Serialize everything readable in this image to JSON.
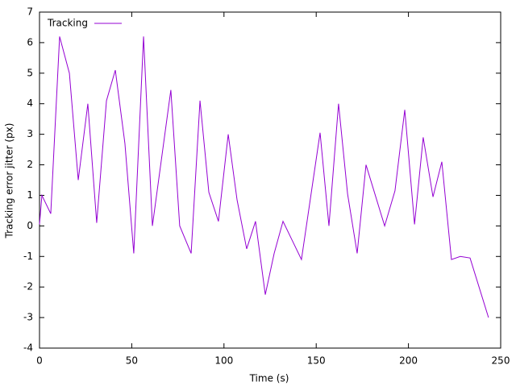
{
  "chart_data": {
    "type": "line",
    "xlabel": "Time (s)",
    "ylabel": "Tracking error jitter (px)",
    "x": [
      0,
      1.3,
      6.1,
      10.9,
      16.2,
      21,
      26.2,
      31,
      36.3,
      41.1,
      46.3,
      51.1,
      56.4,
      61.2,
      71.2,
      76,
      82.2,
      87,
      91.8,
      97,
      102.3,
      107.1,
      112.3,
      117.1,
      122.4,
      127.2,
      132,
      136.8,
      142,
      152.1,
      156.9,
      162.1,
      167,
      172.2,
      177,
      187.1,
      192.7,
      198,
      203.3,
      208,
      213.3,
      218.1,
      223.3,
      228.1,
      233.4,
      243.4
    ],
    "series": [
      {
        "name": "Tracking",
        "color": "#9400d3",
        "values": [
          0.05,
          1.0,
          0.4,
          6.2,
          5.0,
          1.5,
          4.0,
          0.1,
          4.1,
          5.1,
          2.7,
          -0.9,
          6.2,
          0,
          4.45,
          0,
          -0.9,
          4.1,
          1.1,
          0.15,
          3.0,
          0.85,
          -0.75,
          0.15,
          -2.25,
          -0.9,
          0.15,
          -0.45,
          -1.1,
          3.05,
          0,
          4.0,
          1.05,
          -0.9,
          2.0,
          0,
          1.15,
          3.8,
          0.05,
          2.9,
          0.95,
          2.1,
          -1.1,
          -1.0,
          -1.05,
          -3.0
        ]
      }
    ],
    "xlim": [
      0,
      250
    ],
    "xticks": [
      0,
      50,
      100,
      150,
      200,
      250
    ],
    "ylim": [
      -4,
      7
    ],
    "yticks": [
      -4,
      -3,
      -2,
      -1,
      0,
      1,
      2,
      3,
      4,
      5,
      6,
      7
    ],
    "legend": "top-left"
  }
}
